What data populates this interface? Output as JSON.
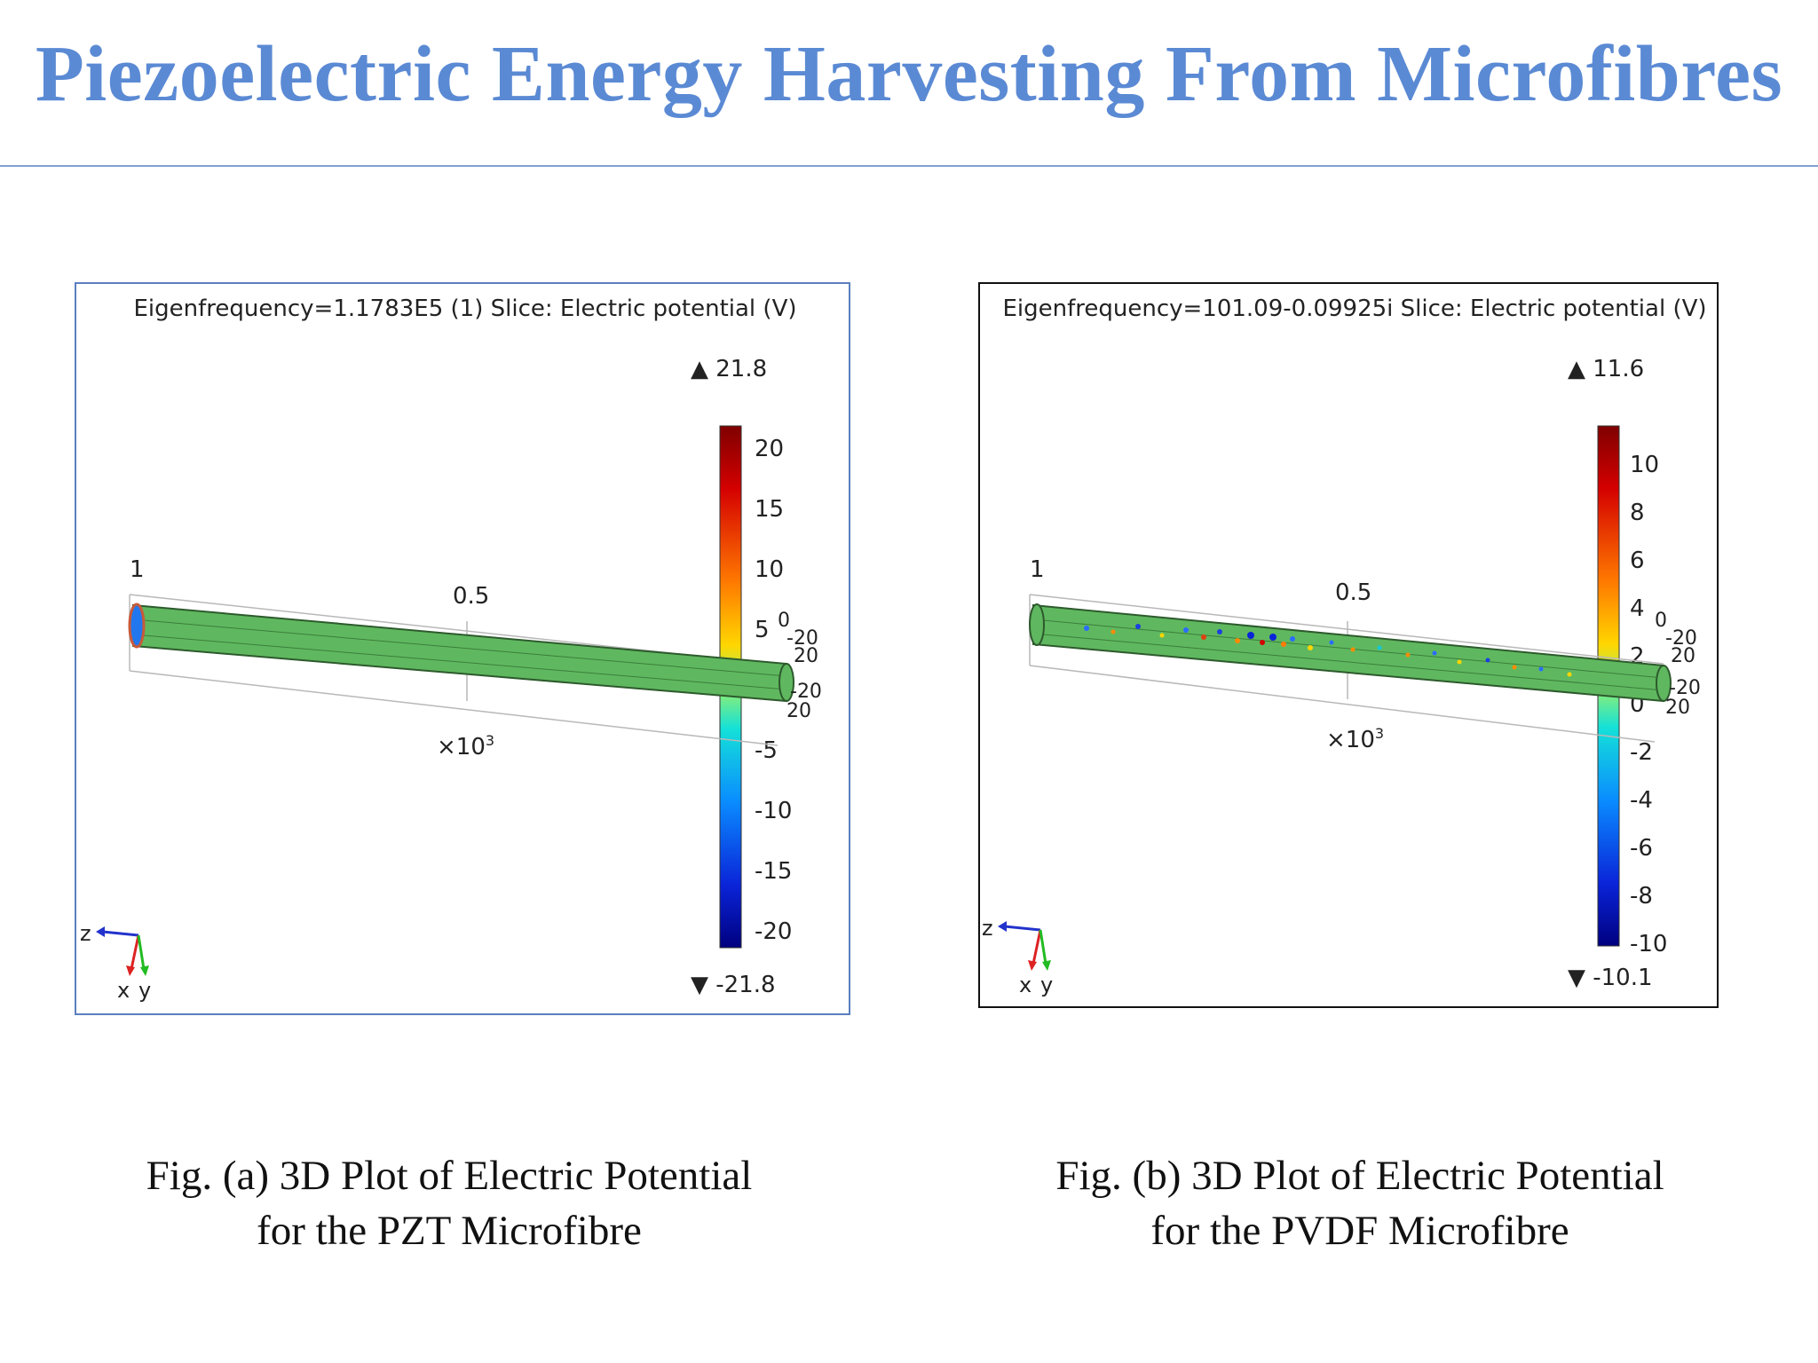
{
  "title": "Piezoelectric Energy Harvesting From Microfibres",
  "panels": [
    {
      "header": "Eigenfrequency=1.1783E5 (1)   Slice: Electric potential (V)",
      "max_label": "▲ 21.8",
      "min_label": "▼ -21.8",
      "colorbar_ticks": [
        "20",
        "15",
        "10",
        "5",
        "0",
        "-5",
        "-10",
        "-15",
        "-20"
      ],
      "axis_labels": {
        "one": "1",
        "half": "0.5",
        "scale_base": "×10",
        "scale_exp": "3"
      },
      "end_labels": [
        "0",
        "-20",
        "20",
        "-20",
        "20"
      ],
      "triad": {
        "z": "z",
        "x": "x",
        "y": "y"
      },
      "fibre_color": "#5fb85f"
    },
    {
      "header": "Eigenfrequency=101.09-0.09925i   Slice: Electric potential (V)",
      "max_label": "▲ 11.6",
      "min_label": "▼ -10.1",
      "colorbar_ticks": [
        "10",
        "8",
        "6",
        "4",
        "2",
        "0",
        "-2",
        "-4",
        "-6",
        "-8",
        "-10"
      ],
      "axis_labels": {
        "one": "1",
        "half": "0.5",
        "scale_base": "×10",
        "scale_exp": "3"
      },
      "end_labels": [
        "0",
        "-20",
        "20",
        "-20",
        "20"
      ],
      "triad": {
        "z": "z",
        "x": "x",
        "y": "y"
      },
      "fibre_color": "#5fb85f"
    }
  ],
  "captions": [
    {
      "line1": "Fig. (a) 3D Plot of Electric Potential",
      "line2": "for the PZT Microfibre"
    },
    {
      "line1": "Fig. (b) 3D Plot of Electric Potential",
      "line2": "for the PVDF Microfibre"
    }
  ]
}
